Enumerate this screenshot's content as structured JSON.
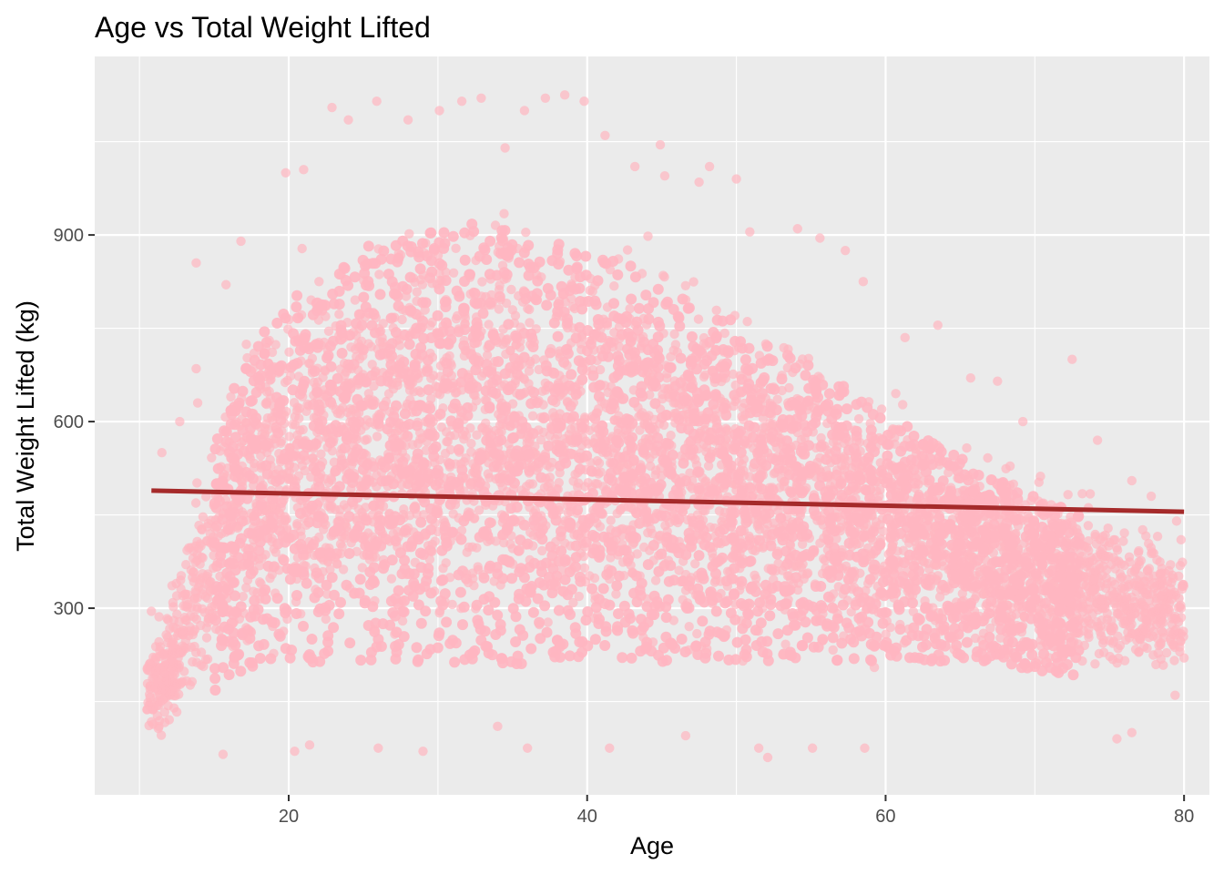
{
  "chart_data": {
    "type": "scatter",
    "title": "Age vs Total Weight Lifted",
    "xlabel": "Age",
    "ylabel": "Total Weight Lifted (kg)",
    "xlim": [
      7,
      81.7
    ],
    "ylim": [
      0,
      1187
    ],
    "x_ticks": [
      20,
      40,
      60,
      80
    ],
    "y_ticks": [
      300,
      600,
      900
    ],
    "x_tick_labels": [
      "20",
      "40",
      "60",
      "80"
    ],
    "y_tick_labels": [
      "300",
      "600",
      "900"
    ],
    "grid": true,
    "legend": "none",
    "colors": {
      "points": "#FFB6C1",
      "trend": "#A52A2A",
      "panel": "#EBEBEB",
      "grid": "#FFFFFF"
    },
    "trend_line": {
      "x": [
        10.8,
        80
      ],
      "y": [
        489,
        455
      ]
    },
    "density_envelope": {
      "x": [
        10.5,
        12,
        13,
        14,
        15,
        16,
        17,
        18,
        20,
        22,
        25,
        28,
        30,
        33,
        36,
        40,
        43,
        46,
        50,
        53,
        56,
        60,
        63,
        66,
        70,
        73,
        76,
        80
      ],
      "y_low": [
        70,
        80,
        90,
        100,
        130,
        160,
        170,
        175,
        180,
        180,
        185,
        185,
        185,
        185,
        185,
        185,
        185,
        185,
        190,
        190,
        190,
        190,
        190,
        190,
        175,
        165,
        160,
        180
      ],
      "y_high": [
        250,
        340,
        430,
        540,
        620,
        700,
        760,
        800,
        860,
        900,
        940,
        960,
        970,
        980,
        970,
        940,
        910,
        870,
        820,
        780,
        740,
        680,
        630,
        590,
        540,
        510,
        470,
        400
      ]
    },
    "outliers": [
      {
        "x": 13.8,
        "y": 855
      },
      {
        "x": 13.8,
        "y": 685
      },
      {
        "x": 13.9,
        "y": 630
      },
      {
        "x": 12.7,
        "y": 600
      },
      {
        "x": 15.8,
        "y": 820
      },
      {
        "x": 16.8,
        "y": 890
      },
      {
        "x": 19.8,
        "y": 1000
      },
      {
        "x": 21,
        "y": 1005
      },
      {
        "x": 22.9,
        "y": 1105
      },
      {
        "x": 24,
        "y": 1085
      },
      {
        "x": 25.9,
        "y": 1115
      },
      {
        "x": 28,
        "y": 1085
      },
      {
        "x": 30.1,
        "y": 1100
      },
      {
        "x": 31.6,
        "y": 1115
      },
      {
        "x": 32.9,
        "y": 1120
      },
      {
        "x": 34.5,
        "y": 1040
      },
      {
        "x": 35.8,
        "y": 1100
      },
      {
        "x": 37.2,
        "y": 1120
      },
      {
        "x": 38.5,
        "y": 1125
      },
      {
        "x": 39.8,
        "y": 1115
      },
      {
        "x": 41.2,
        "y": 1060
      },
      {
        "x": 43.2,
        "y": 1010
      },
      {
        "x": 44.9,
        "y": 1045
      },
      {
        "x": 45.2,
        "y": 995
      },
      {
        "x": 47.5,
        "y": 985
      },
      {
        "x": 48.2,
        "y": 1010
      },
      {
        "x": 50,
        "y": 990
      },
      {
        "x": 50.9,
        "y": 905
      },
      {
        "x": 54.1,
        "y": 910
      },
      {
        "x": 55.6,
        "y": 895
      },
      {
        "x": 57.3,
        "y": 875
      },
      {
        "x": 58.5,
        "y": 825
      },
      {
        "x": 61.3,
        "y": 735
      },
      {
        "x": 63.5,
        "y": 755
      },
      {
        "x": 65.7,
        "y": 670
      },
      {
        "x": 67.5,
        "y": 665
      },
      {
        "x": 69.2,
        "y": 600
      },
      {
        "x": 72.5,
        "y": 700
      },
      {
        "x": 74.2,
        "y": 570
      },
      {
        "x": 76.5,
        "y": 505
      },
      {
        "x": 77.8,
        "y": 480
      },
      {
        "x": 79.5,
        "y": 440
      },
      {
        "x": 10.8,
        "y": 295
      },
      {
        "x": 11.5,
        "y": 550
      },
      {
        "x": 15.6,
        "y": 65
      },
      {
        "x": 20.4,
        "y": 70
      },
      {
        "x": 21.4,
        "y": 80
      },
      {
        "x": 26,
        "y": 75
      },
      {
        "x": 29,
        "y": 70
      },
      {
        "x": 34,
        "y": 110
      },
      {
        "x": 36,
        "y": 75
      },
      {
        "x": 41.5,
        "y": 75
      },
      {
        "x": 46.6,
        "y": 95
      },
      {
        "x": 51.5,
        "y": 75
      },
      {
        "x": 52.1,
        "y": 60
      },
      {
        "x": 55.1,
        "y": 75
      },
      {
        "x": 58.6,
        "y": 75
      },
      {
        "x": 75.5,
        "y": 90
      },
      {
        "x": 76.5,
        "y": 100
      },
      {
        "x": 80,
        "y": 220
      },
      {
        "x": 79.8,
        "y": 410
      },
      {
        "x": 79.8,
        "y": 300
      },
      {
        "x": 79.4,
        "y": 160
      }
    ]
  }
}
